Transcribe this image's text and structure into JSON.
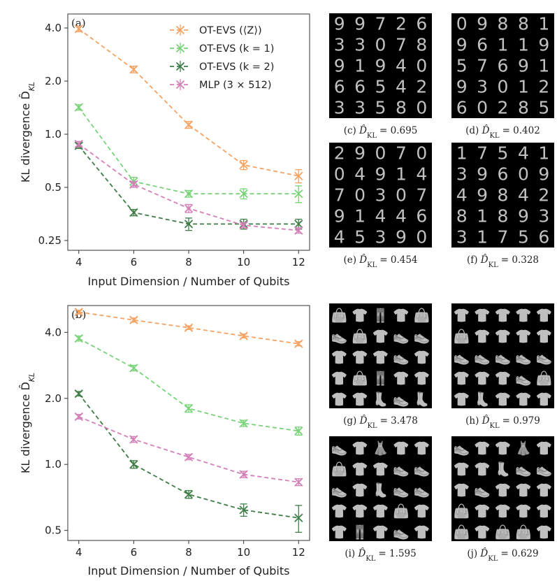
{
  "chart_data": [
    {
      "type": "line",
      "panel_label": "(a)",
      "xlabel": "Input Dimension / Number of Qubits",
      "ylabel": "KL divergence D̂",
      "ylabel_sub": "KL",
      "yscale": "log",
      "ylim": [
        0.22,
        4.8
      ],
      "xlim": [
        3.6,
        12.4
      ],
      "x": [
        4,
        6,
        8,
        10,
        12
      ],
      "xticks": [
        "4",
        "6",
        "8",
        "10",
        "12"
      ],
      "yticks": [
        {
          "v": 4.0,
          "label": "4.0"
        },
        {
          "v": 2.0,
          "label": "2.0"
        },
        {
          "v": 1.0,
          "label": "1.0"
        },
        {
          "v": 0.5,
          "label": "0.5"
        },
        {
          "v": 0.25,
          "label": "0.25"
        }
      ],
      "legend_position": "top-right",
      "series": [
        {
          "name": "OT-EVS (⟨Z⟩)",
          "color": "#f5a262",
          "values": [
            3.95,
            2.33,
            1.13,
            0.67,
            0.58
          ],
          "errors": [
            0.14,
            0.1,
            0.05,
            0.04,
            0.05
          ]
        },
        {
          "name": "OT-EVS (k = 1)",
          "color": "#78d278",
          "values": [
            1.42,
            0.54,
            0.46,
            0.46,
            0.46
          ],
          "errors": [
            0.05,
            0.03,
            0.02,
            0.03,
            0.05
          ]
        },
        {
          "name": "OT-EVS (k = 2)",
          "color": "#3e7d48",
          "values": [
            0.86,
            0.36,
            0.31,
            0.31,
            0.31
          ],
          "errors": [
            0.03,
            0.015,
            0.025,
            0.02,
            0.02
          ]
        },
        {
          "name": "MLP (3 × 512)",
          "color": "#d47fb8",
          "values": [
            0.88,
            0.52,
            0.38,
            0.305,
            0.285
          ],
          "errors": [
            0.03,
            0.02,
            0.02,
            0.01,
            0.01
          ]
        }
      ]
    },
    {
      "type": "line",
      "panel_label": "(b)",
      "xlabel": "Input Dimension / Number of Qubits",
      "ylabel": "KL divergence D̂",
      "ylabel_sub": "KL",
      "yscale": "log",
      "ylim": [
        0.45,
        5.3
      ],
      "xlim": [
        3.6,
        12.4
      ],
      "x": [
        4,
        6,
        8,
        10,
        12
      ],
      "xticks": [
        "4",
        "6",
        "8",
        "10",
        "12"
      ],
      "yticks": [
        {
          "v": 4.0,
          "label": "4.0"
        },
        {
          "v": 2.0,
          "label": "2.0"
        },
        {
          "v": 1.0,
          "label": "1.0"
        },
        {
          "v": 0.5,
          "label": "0.5"
        }
      ],
      "series": [
        {
          "name": "OT-EVS (⟨Z⟩)",
          "color": "#f5a262",
          "values": [
            4.95,
            4.55,
            4.2,
            3.85,
            3.55
          ],
          "errors": [
            0.1,
            0.1,
            0.08,
            0.08,
            0.08
          ]
        },
        {
          "name": "OT-EVS (k = 1)",
          "color": "#78d278",
          "values": [
            3.75,
            2.75,
            1.8,
            1.54,
            1.42
          ],
          "errors": [
            0.1,
            0.08,
            0.07,
            0.05,
            0.06
          ]
        },
        {
          "name": "OT-EVS (k = 2)",
          "color": "#3e7d48",
          "values": [
            2.1,
            1.0,
            0.73,
            0.62,
            0.57
          ],
          "errors": [
            0.05,
            0.04,
            0.03,
            0.04,
            0.08
          ]
        },
        {
          "name": "MLP (3 × 512)",
          "color": "#d47fb8",
          "values": [
            1.65,
            1.3,
            1.08,
            0.9,
            0.83
          ],
          "errors": [
            0.04,
            0.04,
            0.03,
            0.03,
            0.03
          ]
        }
      ]
    }
  ],
  "sample_panels": [
    {
      "label": "(c)",
      "metric": "D̂",
      "sub": "KL",
      "value": "= 0.695",
      "rows": [
        [
          "9",
          "9",
          "7",
          "2",
          "6"
        ],
        [
          "3",
          "3",
          "0",
          "7",
          "8"
        ],
        [
          "9",
          "1",
          "9",
          "4",
          "0"
        ],
        [
          "6",
          "6",
          "5",
          "4",
          "2"
        ],
        [
          "3",
          "3",
          "5",
          "8",
          "0"
        ]
      ]
    },
    {
      "label": "(d)",
      "metric": "D̂",
      "sub": "KL",
      "value": "= 0.402",
      "rows": [
        [
          "0",
          "9",
          "8",
          "8",
          "1"
        ],
        [
          "9",
          "6",
          "1",
          "1",
          "9"
        ],
        [
          "5",
          "7",
          "6",
          "9",
          "1"
        ],
        [
          "9",
          "3",
          "0",
          "1",
          "2"
        ],
        [
          "6",
          "0",
          "2",
          "8",
          "5"
        ]
      ]
    },
    {
      "label": "(e)",
      "metric": "D̂",
      "sub": "KL",
      "value": "= 0.454",
      "rows": [
        [
          "2",
          "9",
          "0",
          "7",
          "0"
        ],
        [
          "0",
          "4",
          "9",
          "1",
          "4"
        ],
        [
          "7",
          "0",
          "3",
          "0",
          "7"
        ],
        [
          "9",
          "1",
          "4",
          "4",
          "6"
        ],
        [
          "4",
          "5",
          "3",
          "9",
          "0"
        ]
      ]
    },
    {
      "label": "(f)",
      "metric": "D̂",
      "sub": "KL",
      "value": "= 0.328",
      "rows": [
        [
          "1",
          "7",
          "5",
          "4",
          "1"
        ],
        [
          "3",
          "9",
          "6",
          "0",
          "9"
        ],
        [
          "4",
          "9",
          "8",
          "4",
          "2"
        ],
        [
          "8",
          "1",
          "8",
          "9",
          "3"
        ],
        [
          "3",
          "1",
          "7",
          "5",
          "6"
        ]
      ]
    },
    {
      "label": "(g)",
      "metric": "D̂",
      "sub": "KL",
      "value": "= 3.478",
      "rows": [
        [
          "👜",
          "👕",
          "👖",
          "👕",
          "👜"
        ],
        [
          "👟",
          "👜",
          "👕",
          "👟",
          "👟"
        ],
        [
          "👕",
          "👕",
          "👕",
          "👟",
          "👕"
        ],
        [
          "👕",
          "👜",
          "👖",
          "👕",
          "👕"
        ],
        [
          "👕",
          "👕",
          "👢",
          "👟",
          "👢"
        ]
      ]
    },
    {
      "label": "(h)",
      "metric": "D̂",
      "sub": "KL",
      "value": "= 0.979",
      "rows": [
        [
          "👕",
          "👕",
          "👕",
          "👕",
          "👕"
        ],
        [
          "👜",
          "👕",
          "👕",
          "👕",
          "👕"
        ],
        [
          "👟",
          "👟",
          "👟",
          "👟",
          "👟"
        ],
        [
          "👕",
          "👕",
          "👕",
          "👟",
          "👜"
        ],
        [
          "👕",
          "👢",
          "👕",
          "👕",
          "👕"
        ]
      ]
    },
    {
      "label": "(i)",
      "metric": "D̂",
      "sub": "KL",
      "value": "= 1.595",
      "rows": [
        [
          "👟",
          "👕",
          "👗",
          "👕",
          "👕"
        ],
        [
          "👜",
          "👕",
          "👕",
          "👟",
          "👟"
        ],
        [
          "👟",
          "👕",
          "👢",
          "👟",
          "👟"
        ],
        [
          "👕",
          "👕",
          "👕",
          "👜",
          "👕"
        ],
        [
          "👕",
          "👖",
          "👕",
          "👟",
          "👕"
        ]
      ]
    },
    {
      "label": "(j)",
      "metric": "D̂",
      "sub": "KL",
      "value": "= 0.629",
      "rows": [
        [
          "👟",
          "👕",
          "👕",
          "👗",
          "👕"
        ],
        [
          "👕",
          "👕",
          "👢",
          "👟",
          "👟"
        ],
        [
          "👕",
          "👟",
          "👕",
          "👕",
          "👕"
        ],
        [
          "👜",
          "👕",
          "👕",
          "👕",
          "👕"
        ],
        [
          "👜",
          "👕",
          "👜",
          "👜",
          "👕"
        ]
      ]
    }
  ]
}
